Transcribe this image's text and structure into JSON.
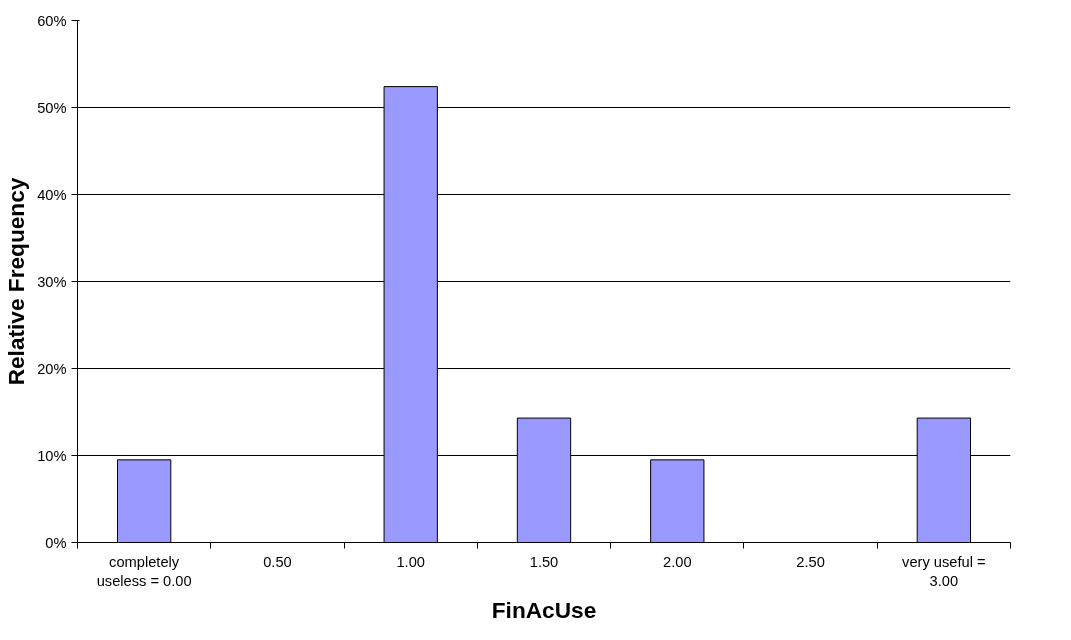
{
  "chart_data": {
    "type": "bar",
    "xlabel": "FinAcUse",
    "ylabel": "Relative Frequency",
    "categories": [
      "completely useless = 0.00",
      "0.50",
      "1.00",
      "1.50",
      "2.00",
      "2.50",
      "very useful = 3.00"
    ],
    "values": [
      9.5,
      0,
      52.4,
      14.3,
      9.5,
      0,
      14.3
    ],
    "color": "#9999ff",
    "ylim": [
      0,
      60
    ],
    "yticks": [
      {
        "value": 0,
        "label": "0%"
      },
      {
        "value": 10,
        "label": "10%"
      },
      {
        "value": 20,
        "label": "20%"
      },
      {
        "value": 30,
        "label": "30%"
      },
      {
        "value": 40,
        "label": "40%"
      },
      {
        "value": 50,
        "label": "50%"
      },
      {
        "value": 60,
        "label": "60%"
      }
    ],
    "grid": "y"
  }
}
